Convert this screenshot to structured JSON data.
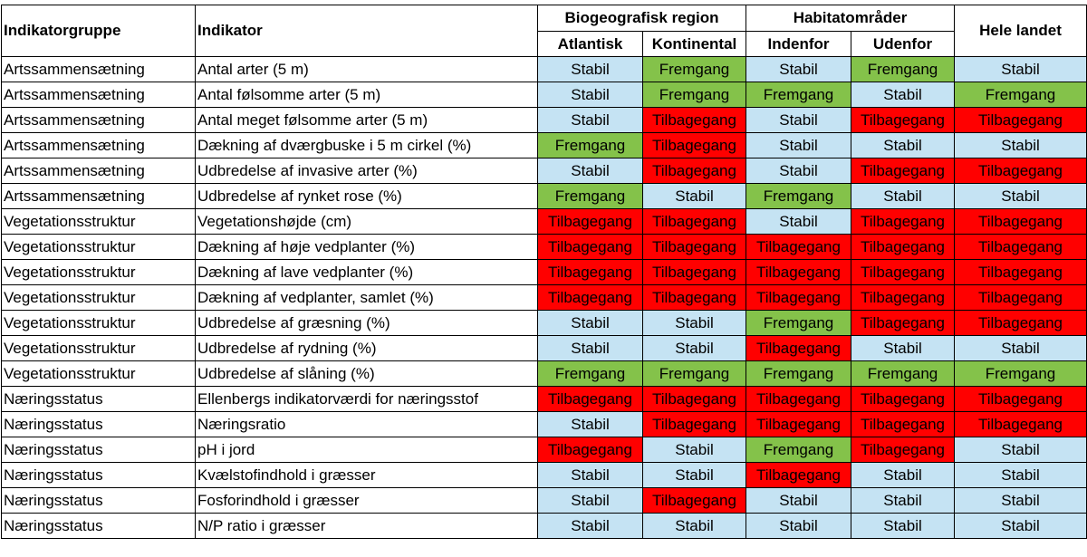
{
  "header": {
    "group": "Indikatorgruppe",
    "indicator": "Indikator",
    "region": "Biogeografisk region",
    "habitat": "Habitatområder",
    "national": "Hele landet",
    "sub": [
      "Atlantisk",
      "Kontinental",
      "Indenfor",
      "Udenfor"
    ]
  },
  "status_colors": {
    "Stabil": "#c5e3f3",
    "Fremgang": "#84c24a",
    "Tilbagegang": "#ff0000"
  },
  "rows": [
    {
      "group": "Artssammensætning",
      "indicator": "Antal arter (5 m)",
      "values": [
        "Stabil",
        "Fremgang",
        "Stabil",
        "Fremgang",
        "Stabil"
      ]
    },
    {
      "group": "Artssammensætning",
      "indicator": "Antal følsomme arter (5 m)",
      "values": [
        "Stabil",
        "Fremgang",
        "Fremgang",
        "Stabil",
        "Fremgang"
      ]
    },
    {
      "group": "Artssammensætning",
      "indicator": "Antal meget følsomme arter (5 m)",
      "values": [
        "Stabil",
        "Tilbagegang",
        "Stabil",
        "Tilbagegang",
        "Tilbagegang"
      ]
    },
    {
      "group": "Artssammensætning",
      "indicator": "Dækning af dværgbuske i 5 m cirkel (%)",
      "values": [
        "Fremgang",
        "Tilbagegang",
        "Stabil",
        "Stabil",
        "Stabil"
      ]
    },
    {
      "group": "Artssammensætning",
      "indicator": "Udbredelse af invasive arter (%)",
      "values": [
        "Stabil",
        "Tilbagegang",
        "Stabil",
        "Tilbagegang",
        "Tilbagegang"
      ]
    },
    {
      "group": "Artssammensætning",
      "indicator": "Udbredelse af rynket rose (%)",
      "values": [
        "Fremgang",
        "Stabil",
        "Fremgang",
        "Stabil",
        "Stabil"
      ]
    },
    {
      "group": "Vegetationsstruktur",
      "indicator": "Vegetationshøjde (cm)",
      "values": [
        "Tilbagegang",
        "Tilbagegang",
        "Stabil",
        "Tilbagegang",
        "Tilbagegang"
      ]
    },
    {
      "group": "Vegetationsstruktur",
      "indicator": "Dækning af høje vedplanter (%)",
      "values": [
        "Tilbagegang",
        "Tilbagegang",
        "Tilbagegang",
        "Tilbagegang",
        "Tilbagegang"
      ]
    },
    {
      "group": "Vegetationsstruktur",
      "indicator": "Dækning af lave vedplanter (%)",
      "values": [
        "Tilbagegang",
        "Tilbagegang",
        "Tilbagegang",
        "Tilbagegang",
        "Tilbagegang"
      ]
    },
    {
      "group": "Vegetationsstruktur",
      "indicator": "Dækning af vedplanter, samlet (%)",
      "values": [
        "Tilbagegang",
        "Tilbagegang",
        "Tilbagegang",
        "Tilbagegang",
        "Tilbagegang"
      ]
    },
    {
      "group": "Vegetationsstruktur",
      "indicator": "Udbredelse af græsning (%)",
      "values": [
        "Stabil",
        "Stabil",
        "Fremgang",
        "Tilbagegang",
        "Tilbagegang"
      ]
    },
    {
      "group": "Vegetationsstruktur",
      "indicator": "Udbredelse af rydning (%)",
      "values": [
        "Stabil",
        "Stabil",
        "Tilbagegang",
        "Stabil",
        "Stabil"
      ]
    },
    {
      "group": "Vegetationsstruktur",
      "indicator": "Udbredelse af slåning (%)",
      "values": [
        "Fremgang",
        "Fremgang",
        "Fremgang",
        "Fremgang",
        "Fremgang"
      ]
    },
    {
      "group": "Næringsstatus",
      "indicator": "Ellenbergs indikatorværdi for næringsstof",
      "values": [
        "Tilbagegang",
        "Tilbagegang",
        "Tilbagegang",
        "Tilbagegang",
        "Tilbagegang"
      ]
    },
    {
      "group": "Næringsstatus",
      "indicator": "Næringsratio",
      "values": [
        "Stabil",
        "Tilbagegang",
        "Tilbagegang",
        "Tilbagegang",
        "Tilbagegang"
      ]
    },
    {
      "group": "Næringsstatus",
      "indicator": "pH i jord",
      "values": [
        "Tilbagegang",
        "Stabil",
        "Fremgang",
        "Tilbagegang",
        "Stabil"
      ]
    },
    {
      "group": "Næringsstatus",
      "indicator": "Kvælstofindhold i græsser",
      "values": [
        "Stabil",
        "Stabil",
        "Tilbagegang",
        "Stabil",
        "Stabil"
      ]
    },
    {
      "group": "Næringsstatus",
      "indicator": "Fosforindhold i græsser",
      "values": [
        "Stabil",
        "Tilbagegang",
        "Stabil",
        "Stabil",
        "Stabil"
      ]
    },
    {
      "group": "Næringsstatus",
      "indicator": "N/P ratio i græsser",
      "values": [
        "Stabil",
        "Stabil",
        "Stabil",
        "Stabil",
        "Stabil"
      ]
    }
  ]
}
